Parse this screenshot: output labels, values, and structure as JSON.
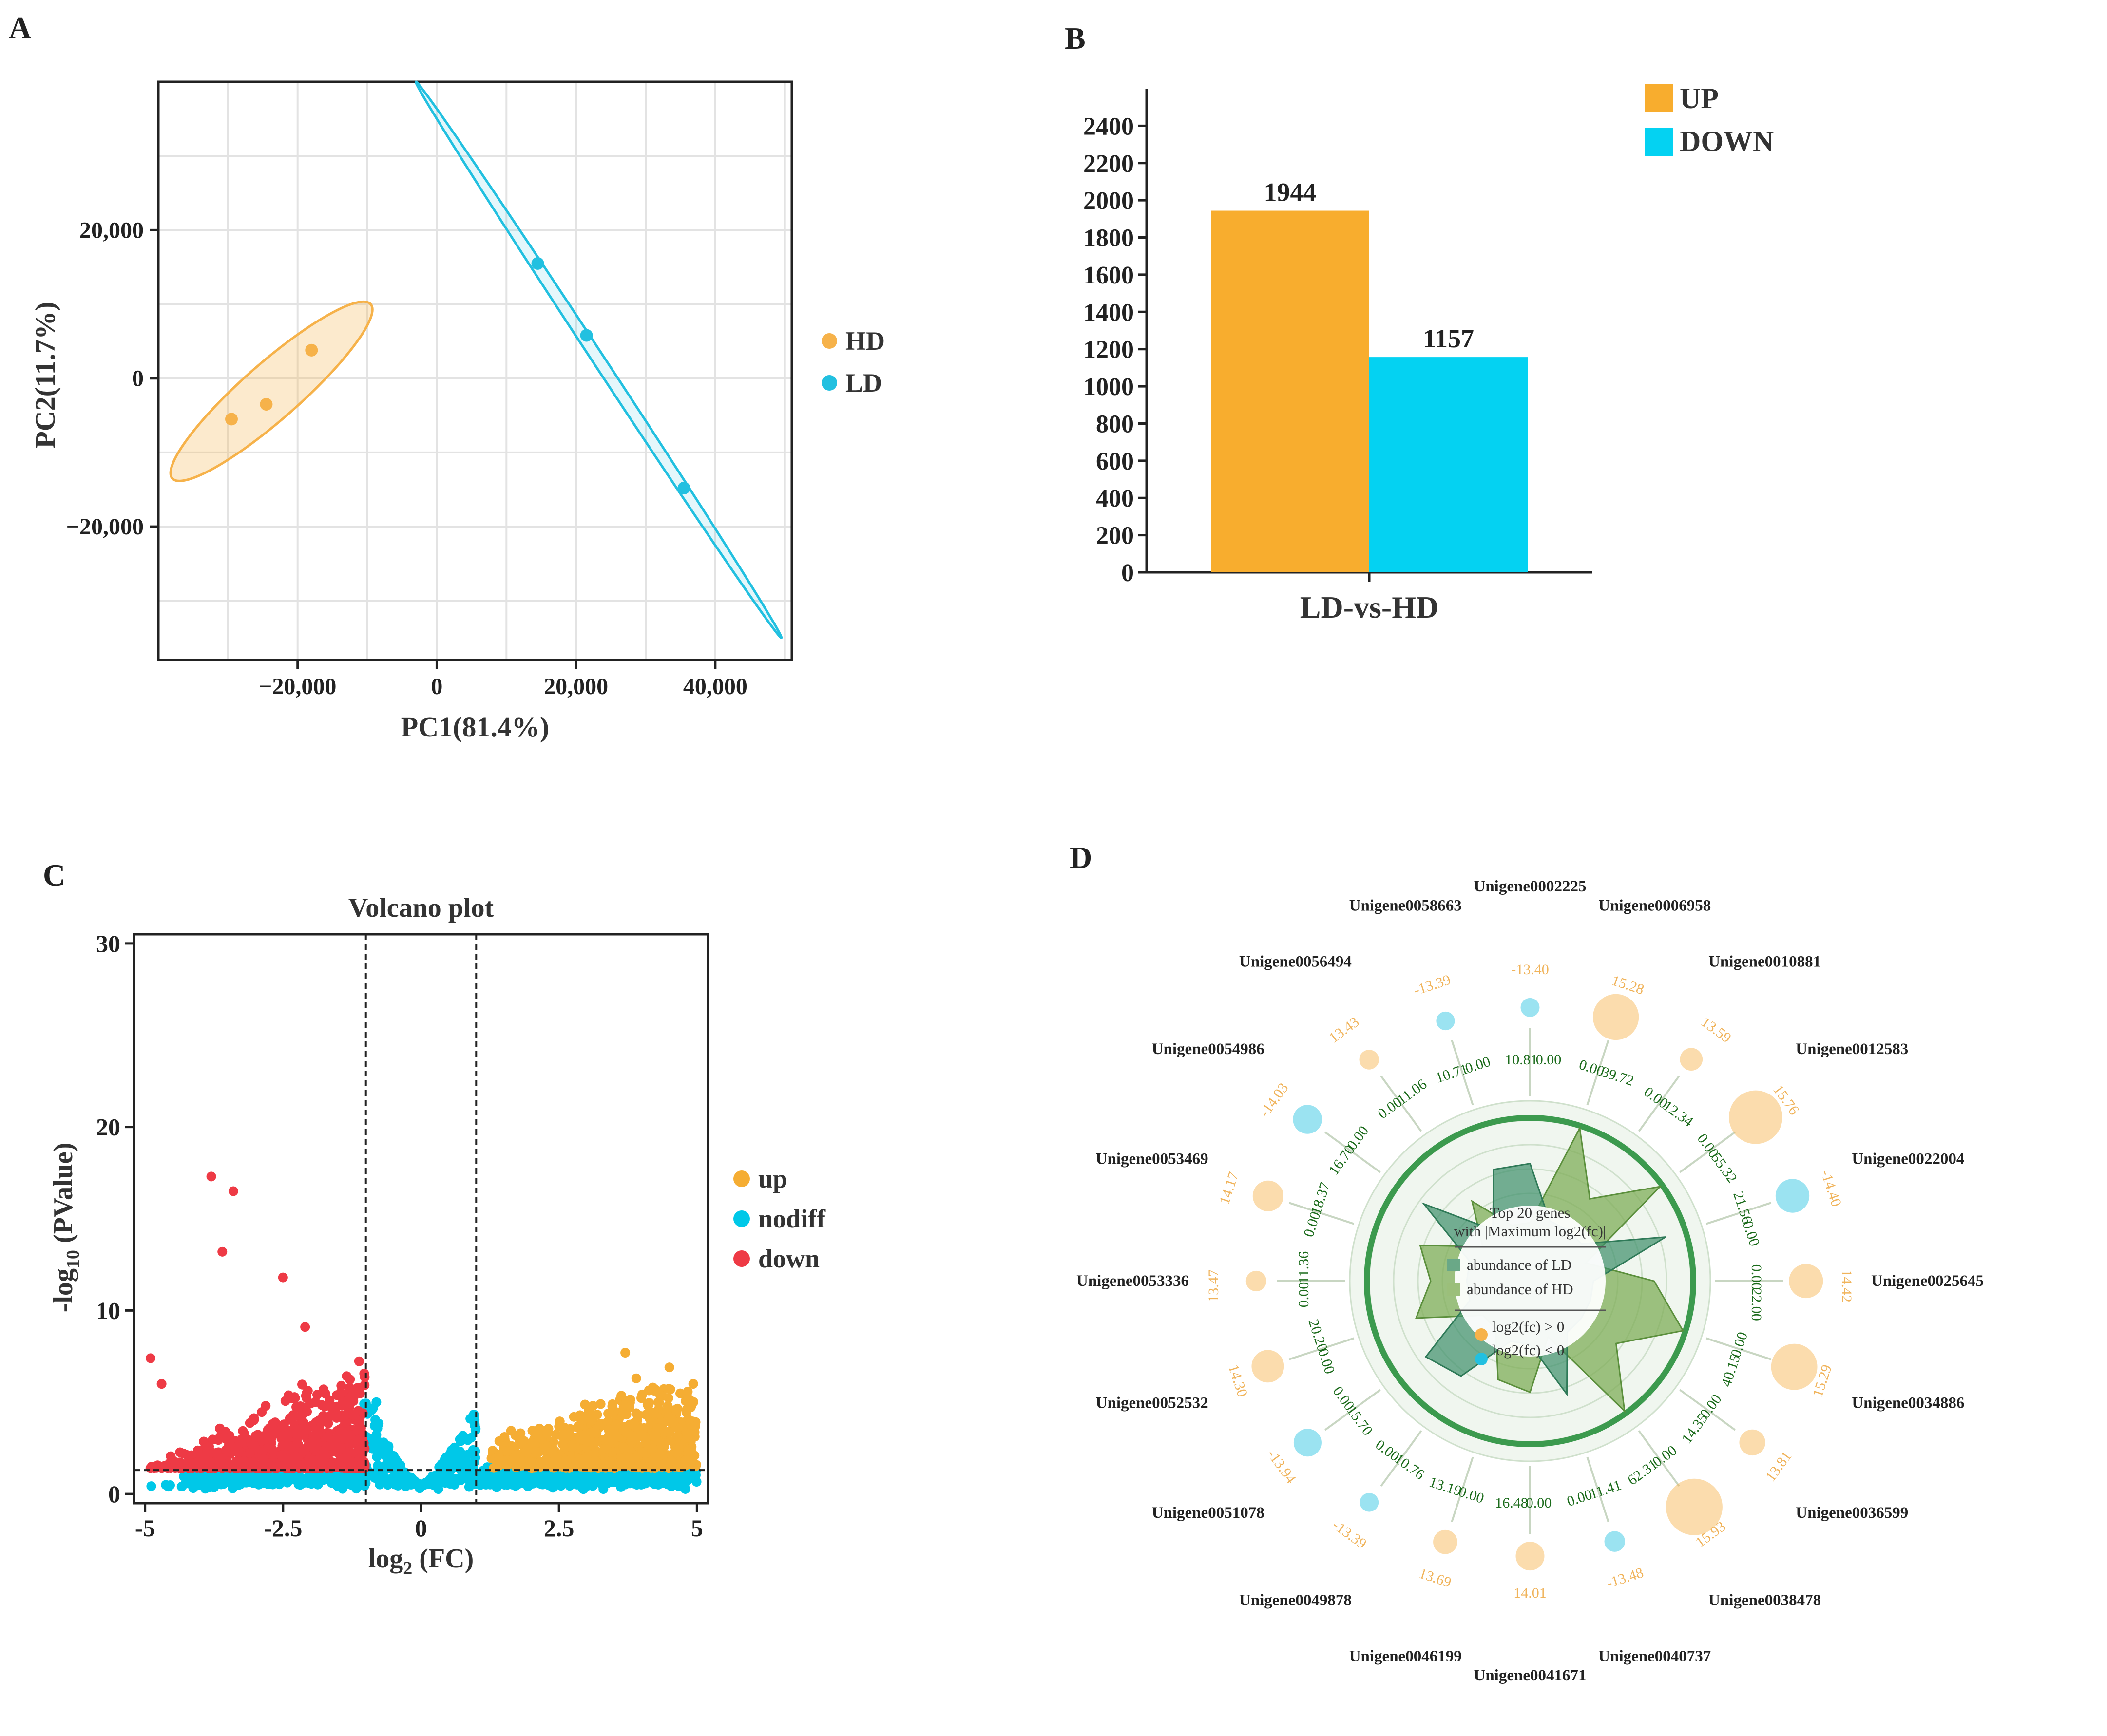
{
  "panels": {
    "a": "A",
    "b": "B",
    "c": "C",
    "d": "D"
  },
  "colors": {
    "hd": "#f6b24a",
    "ld": "#22c0e0",
    "up": "#f8ad2e",
    "down_bar": "#04d2f2",
    "volcano_up": "#f5ad33",
    "nodiff": "#00c8e8",
    "down": "#ee3a45"
  },
  "chart_data": [
    {
      "id": "pca",
      "type": "scatter",
      "xlabel": "PC1(81.4%)",
      "ylabel": "PC2(11.7%)",
      "xlim": [
        -40000,
        51000
      ],
      "ylim": [
        -38000,
        40000
      ],
      "x_ticks": [
        -20000,
        0,
        20000,
        40000
      ],
      "x_tick_labels": [
        "−20,000",
        "0",
        "20,000",
        "40,000"
      ],
      "y_ticks": [
        20000,
        0,
        -20000
      ],
      "y_tick_labels": [
        "20,000",
        "0",
        "−20,000"
      ],
      "series": [
        {
          "name": "HD",
          "points": [
            [
              -29500,
              -5500
            ],
            [
              -24500,
              -3500
            ],
            [
              -18000,
              3800
            ]
          ],
          "ellipse": {
            "end1": [
              -38000,
              -13500
            ],
            "end2": [
              -9500,
              10000
            ],
            "half_width": 3800
          }
        },
        {
          "name": "LD",
          "points": [
            [
              14500,
              15500
            ],
            [
              21500,
              5800
            ],
            [
              35500,
              -14800
            ]
          ],
          "ellipse": {
            "end1": [
              -3000,
              40000
            ],
            "end2": [
              49500,
              -35000
            ],
            "half_width": 800
          }
        }
      ],
      "legend": [
        "HD",
        "LD"
      ]
    },
    {
      "id": "bar",
      "type": "bar",
      "categories": [
        "LD-vs-HD"
      ],
      "series": [
        {
          "name": "UP",
          "values": [
            1944
          ]
        },
        {
          "name": "DOWN",
          "values": [
            1157
          ]
        }
      ],
      "value_labels": [
        "1944",
        "1157"
      ],
      "xlabel": "LD-vs-HD",
      "ylim": [
        0,
        2600
      ],
      "y_ticks": [
        0,
        200,
        400,
        600,
        800,
        1000,
        1200,
        1400,
        1600,
        1800,
        2000,
        2200,
        2400
      ],
      "legend": [
        "UP",
        "DOWN"
      ]
    },
    {
      "id": "volcano",
      "type": "scatter",
      "title": "Volcano plot",
      "xlabel_main": "log",
      "xlabel_sub": "2",
      "xlabel_rest": " (FC)",
      "ylabel_main": "-log",
      "ylabel_sub": "10",
      "ylabel_rest": " (PValue)",
      "xlim": [
        -5.2,
        5.2
      ],
      "ylim": [
        -0.5,
        30.5
      ],
      "x_ticks": [
        -5,
        -2.5,
        0,
        2.5,
        5
      ],
      "x_tick_labels": [
        "-5",
        "-2.5",
        "0",
        "2.5",
        "5"
      ],
      "y_ticks": [
        0,
        10,
        20,
        30
      ],
      "y_tick_labels": [
        "0",
        "10",
        "20",
        "30"
      ],
      "thresholds": {
        "x": [
          -1,
          1
        ],
        "y": 1.3
      },
      "legend": [
        "up",
        "nodiff",
        "down"
      ],
      "notable_down_points": [
        [
          -3.8,
          17.3
        ],
        [
          -3.4,
          16.5
        ],
        [
          -3.6,
          13.2
        ],
        [
          -2.5,
          11.8
        ],
        [
          -2.1,
          9.1
        ],
        [
          -4.9,
          7.4
        ],
        [
          -4.7,
          6.0
        ]
      ],
      "notable_up_points": [
        [
          3.7,
          7.7
        ],
        [
          4.5,
          6.9
        ],
        [
          3.9,
          6.3
        ],
        [
          4.2,
          5.8
        ]
      ]
    },
    {
      "id": "radial",
      "type": "radar",
      "center_title_1": "Top 20 genes",
      "center_title_2": "with |Maximum log2(fc)|",
      "legend_abundance_ld": "abundance of LD",
      "legend_abundance_hd": "abundance of HD",
      "legend_pos": "log2(fc) > 0",
      "legend_neg": "log2(fc) < 0",
      "genes": [
        {
          "name": "Unigene0002225",
          "lfc": "-13.40",
          "ld": "10.81",
          "hd": "0.00"
        },
        {
          "name": "Unigene0006958",
          "lfc": "15.28",
          "ld": "0.00",
          "hd": "39.72"
        },
        {
          "name": "Unigene0010881",
          "lfc": "13.59",
          "ld": "0.00",
          "hd": "12.34"
        },
        {
          "name": "Unigene0012583",
          "lfc": "15.76",
          "ld": "0.00",
          "hd": "55.32"
        },
        {
          "name": "Unigene0022004",
          "lfc": "-14.40",
          "ld": "21.56",
          "hd": "0.00"
        },
        {
          "name": "Unigene0025645",
          "lfc": "14.42",
          "ld": "0.00",
          "hd": "22.00"
        },
        {
          "name": "Unigene0034886",
          "lfc": "15.29",
          "ld": "0.00",
          "hd": "40.15"
        },
        {
          "name": "Unigene0036599",
          "lfc": "13.81",
          "ld": "0.00",
          "hd": "14.35"
        },
        {
          "name": "Unigene0038478",
          "lfc": "15.93",
          "ld": "0.00",
          "hd": "62.31"
        },
        {
          "name": "Unigene0040737",
          "lfc": "-13.48",
          "ld": "11.41",
          "hd": "0.00"
        },
        {
          "name": "Unigene0041671",
          "lfc": "14.01",
          "ld": "0.00",
          "hd": "16.48"
        },
        {
          "name": "Unigene0046199",
          "lfc": "13.69",
          "ld": "0.00",
          "hd": "13.19"
        },
        {
          "name": "Unigene0049878",
          "lfc": "-13.39",
          "ld": "10.76",
          "hd": "0.00"
        },
        {
          "name": "Unigene0051078",
          "lfc": "-13.94",
          "ld": "15.70",
          "hd": "0.00"
        },
        {
          "name": "Unigene0052532",
          "lfc": "14.30",
          "ld": "0.00",
          "hd": "20.20"
        },
        {
          "name": "Unigene0053336",
          "lfc": "13.47",
          "ld": "0.00",
          "hd": "11.36"
        },
        {
          "name": "Unigene0053469",
          "lfc": "14.17",
          "ld": "0.00",
          "hd": "18.37"
        },
        {
          "name": "Unigene0054986",
          "lfc": "-14.03",
          "ld": "16.70",
          "hd": "0.00"
        },
        {
          "name": "Unigene0056494",
          "lfc": "13.43",
          "ld": "0.00",
          "hd": "11.06"
        },
        {
          "name": "Unigene0058663",
          "lfc": "-13.39",
          "ld": "10.71",
          "hd": "0.00"
        }
      ]
    }
  ]
}
